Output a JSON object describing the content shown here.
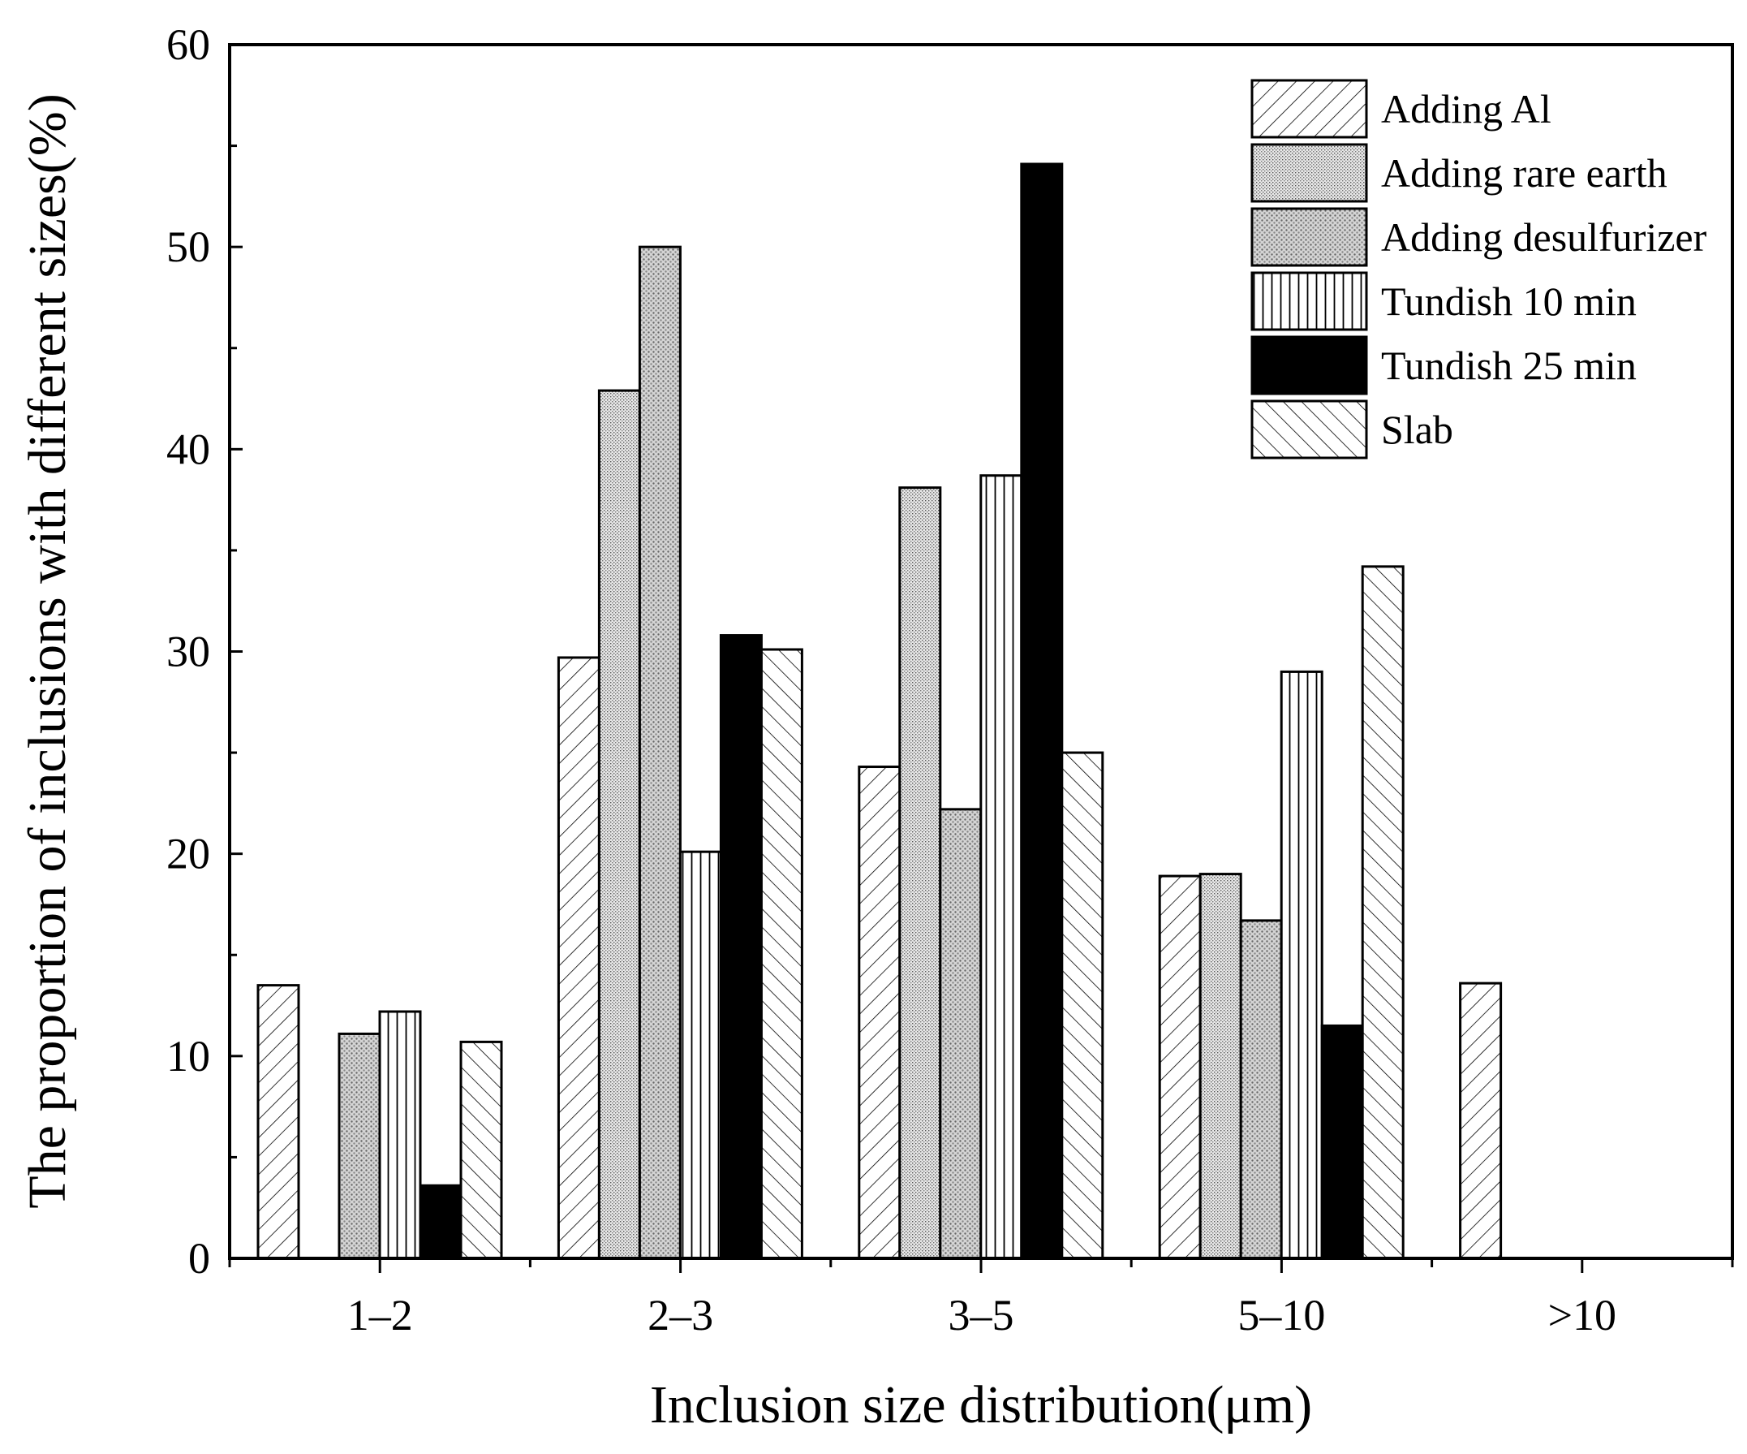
{
  "chart_data": {
    "type": "bar",
    "title": "",
    "xlabel": "Inclusion size distribution(μm)",
    "ylabel": "The proportion of inclusions with different sizes(%)",
    "ylim": [
      0,
      60
    ],
    "yticks": [
      "0",
      "10",
      "20",
      "30",
      "40",
      "50",
      "60"
    ],
    "categories": [
      "1–2",
      "2–3",
      "3–5",
      "5–10",
      ">10"
    ],
    "legend_position": "top-right",
    "series": [
      {
        "name": "Adding Al",
        "pattern": "hatch-forward",
        "values": [
          13.5,
          29.7,
          24.3,
          18.9,
          13.6
        ]
      },
      {
        "name": "Adding rare earth",
        "pattern": "fine-stipple",
        "values": [
          0,
          42.9,
          38.1,
          19.0,
          0
        ]
      },
      {
        "name": "Adding desulfurizer",
        "pattern": "coarse-stipple",
        "values": [
          11.1,
          50.0,
          22.2,
          16.7,
          0
        ]
      },
      {
        "name": "Tundish 10 min",
        "pattern": "vertical-lines",
        "values": [
          12.2,
          20.1,
          38.7,
          29.0,
          0
        ]
      },
      {
        "name": "Tundish 25 min",
        "pattern": "solid-black",
        "values": [
          3.6,
          30.8,
          54.1,
          11.5,
          0
        ]
      },
      {
        "name": "Slab",
        "pattern": "hatch-back",
        "values": [
          10.7,
          30.1,
          25.0,
          34.2,
          0
        ]
      }
    ]
  }
}
